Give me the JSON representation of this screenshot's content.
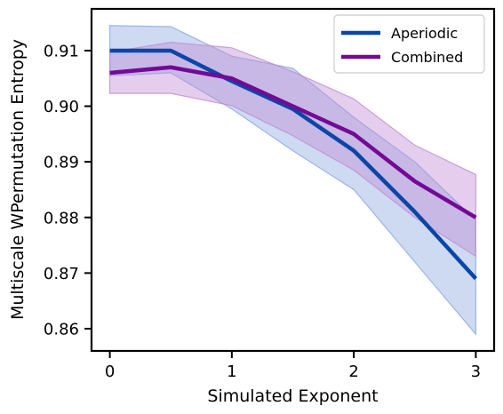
{
  "chart_data": {
    "type": "line",
    "xlabel": "Simulated Exponent",
    "ylabel": "Multiscale WPermutation Entropy",
    "xlim": [
      -0.15,
      3.15
    ],
    "ylim": [
      0.856,
      0.9175
    ],
    "x_ticks": [
      0,
      1,
      2,
      3
    ],
    "x_tick_labels": [
      "0",
      "1",
      "2",
      "3"
    ],
    "y_ticks": [
      0.86,
      0.87,
      0.88,
      0.89,
      0.9,
      0.91
    ],
    "y_tick_labels": [
      "0.86",
      "0.87",
      "0.88",
      "0.89",
      "0.90",
      "0.91"
    ],
    "grid": false,
    "legend_position": "top-right",
    "x": [
      0,
      0.5,
      1,
      1.5,
      2,
      2.5,
      3
    ],
    "series": [
      {
        "name": "Aperiodic",
        "color": "#0a46a8",
        "band_color": "#8aa8e0",
        "values": [
          0.91,
          0.91,
          0.9045,
          0.8995,
          0.892,
          0.881,
          0.869
        ],
        "lower": [
          0.9055,
          0.906,
          0.8995,
          0.892,
          0.885,
          0.872,
          0.859
        ],
        "upper": [
          0.9145,
          0.9143,
          0.909,
          0.9068,
          0.898,
          0.89,
          0.8795
        ]
      },
      {
        "name": "Combined",
        "color": "#730a96",
        "band_color": "#c08bd4",
        "values": [
          0.906,
          0.907,
          0.905,
          0.9,
          0.895,
          0.8865,
          0.88
        ],
        "lower": [
          0.9023,
          0.9023,
          0.9001,
          0.8947,
          0.8885,
          0.88,
          0.873
        ],
        "upper": [
          0.9097,
          0.9115,
          0.9105,
          0.9062,
          0.9013,
          0.893,
          0.8877
        ]
      }
    ]
  }
}
